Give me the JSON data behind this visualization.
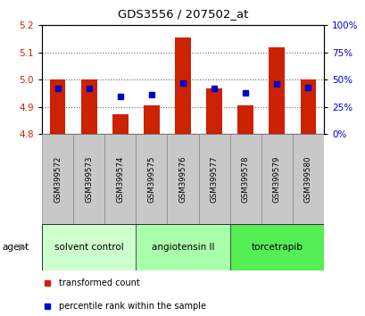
{
  "title": "GDS3556 / 207502_at",
  "samples": [
    "GSM399572",
    "GSM399573",
    "GSM399574",
    "GSM399575",
    "GSM399576",
    "GSM399577",
    "GSM399578",
    "GSM399579",
    "GSM399580"
  ],
  "red_values": [
    5.0,
    5.0,
    4.875,
    4.905,
    5.155,
    4.97,
    4.905,
    5.12,
    5.0
  ],
  "blue_values_pct": [
    42,
    42,
    35,
    36,
    47,
    42,
    38,
    46,
    43
  ],
  "ylim": [
    4.8,
    5.2
  ],
  "yticks_left": [
    4.8,
    4.9,
    5.0,
    5.1,
    5.2
  ],
  "yticks_right": [
    0,
    25,
    50,
    75,
    100
  ],
  "bar_bottom": 4.8,
  "pct_scale_min": 4.8,
  "pct_scale_max": 5.2,
  "bar_color": "#cc2200",
  "dot_color": "#0000cc",
  "groups": [
    {
      "label": "solvent control",
      "start": 0,
      "end": 3,
      "color": "#ccffcc"
    },
    {
      "label": "angiotensin II",
      "start": 3,
      "end": 6,
      "color": "#aaffaa"
    },
    {
      "label": "torcetrapib",
      "start": 6,
      "end": 9,
      "color": "#55ee55"
    }
  ],
  "legend_items": [
    {
      "label": "transformed count",
      "color": "#cc2200"
    },
    {
      "label": "percentile rank within the sample",
      "color": "#0000cc"
    }
  ],
  "agent_label": "agent",
  "bar_width": 0.5,
  "grid_color": "#000000",
  "grid_alpha": 0.6,
  "bg_color": "#ffffff",
  "plot_bg": "#ffffff",
  "left_tick_color": "#cc2200",
  "right_tick_color": "#0000cc",
  "label_bg_color": "#c8c8c8",
  "label_edge_color": "#888888"
}
